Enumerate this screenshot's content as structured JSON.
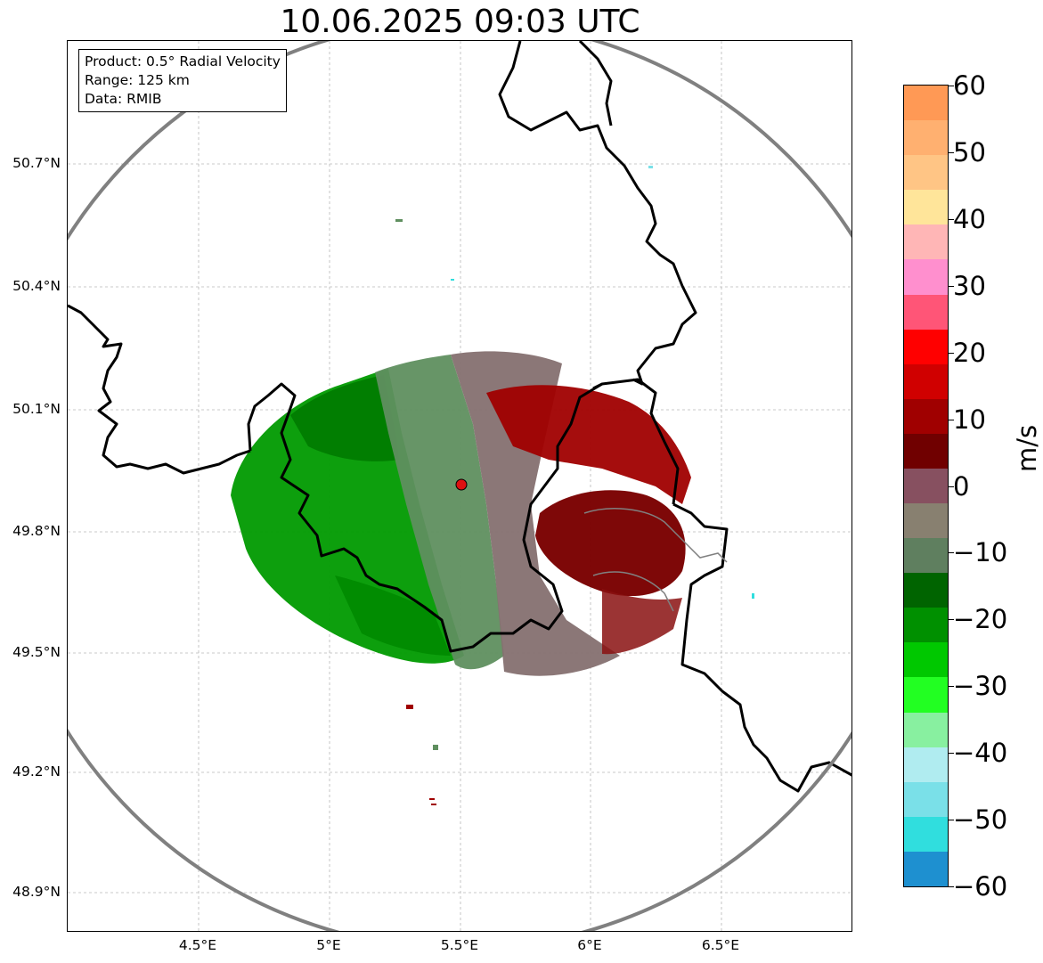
{
  "title": "10.06.2025 09:03 UTC",
  "info": {
    "product": "Product: 0.5° Radial Velocity",
    "range": "Range: 125 km",
    "data": "Data: RMIB"
  },
  "axes": {
    "lat_labels": [
      "50.7°N",
      "50.4°N",
      "50.1°N",
      "49.8°N",
      "49.5°N",
      "49.2°N",
      "48.9°N"
    ],
    "lon_labels": [
      "4.5°E",
      "5°E",
      "5.5°E",
      "6°E",
      "6.5°E"
    ]
  },
  "colorbar": {
    "unit": "m/s",
    "ticks": [
      "60",
      "50",
      "40",
      "30",
      "20",
      "10",
      "0",
      "−10",
      "−20",
      "−30",
      "−40",
      "−50",
      "−60"
    ],
    "colors": [
      "#ff9955",
      "#ffb070",
      "#ffc585",
      "#ffe59a",
      "#ffb6b6",
      "#ff8fce",
      "#ff5577",
      "#ff0000",
      "#d00000",
      "#a00000",
      "#700000",
      "#875060",
      "#888070",
      "#5f7f5f",
      "#006400",
      "#009000",
      "#00c800",
      "#22ff22",
      "#88f0a0",
      "#b0ecf0",
      "#7ae0e8",
      "#30dede",
      "#1e90d0"
    ]
  },
  "radar": {
    "site_label": "",
    "colors": {
      "strong_inbound": "#007a00",
      "inbound": "#009a00",
      "light_inbound": "#5f8f5f",
      "neutral": "#857070",
      "outbound": "#a00000",
      "strong_outbound": "#7a0000",
      "site_marker": "#dd1111",
      "range_ring": "#808080",
      "border": "#000000"
    }
  }
}
